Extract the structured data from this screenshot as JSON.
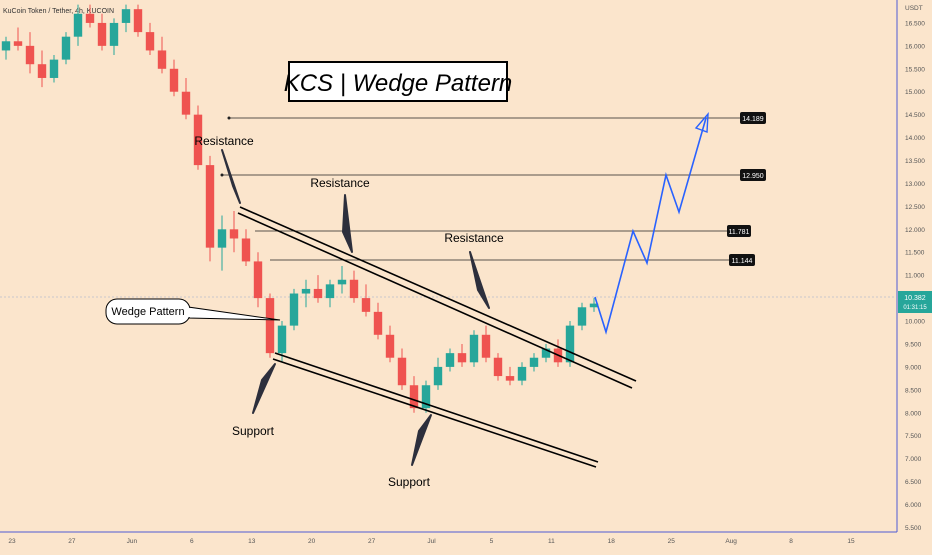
{
  "chart_data": {
    "type": "candlestick",
    "title": "KCS | Wedge Pattern",
    "symbol": "KuCoin Token / Tether, 4h, KUCOIN",
    "currency": "USDT",
    "y_axis_range": [
      5.4,
      17.0
    ],
    "y_ticks": [
      "16.500",
      "16.000",
      "15.500",
      "15.000",
      "14.500",
      "14.000",
      "13.500",
      "13.000",
      "12.500",
      "12.000",
      "11.500",
      "11.000",
      "10.500",
      "10.000",
      "9.500",
      "9.000",
      "8.500",
      "8.000",
      "7.500",
      "7.000",
      "6.500",
      "6.000",
      "5.500"
    ],
    "x_ticks": [
      "23",
      "27",
      "Jun",
      "6",
      "13",
      "20",
      "27",
      "Jul",
      "5",
      "11",
      "18",
      "25",
      "Aug",
      "8",
      "15"
    ],
    "current_price": "10.382",
    "countdown": "01:31:15",
    "price_levels": [
      "14.189",
      "12.950",
      "11.781",
      "11.144"
    ],
    "annotations": {
      "resistance": "Resistance",
      "support": "Support",
      "wedge_pattern": "Wedge Pattern"
    },
    "colors": {
      "background": "#fbe5cc",
      "up_candle": "#26a69a",
      "down_candle": "#ef5350",
      "projection": "#2962ff",
      "current_price_tag": "#26a69a"
    },
    "projection_path": [
      [
        0,
        10.38
      ],
      [
        1,
        9.6
      ],
      [
        2,
        11.75
      ],
      [
        3,
        11.08
      ],
      [
        4,
        12.95
      ],
      [
        5,
        12.15
      ],
      [
        6,
        14.05
      ]
    ],
    "candles": [
      [
        15.9,
        16.2,
        15.7,
        16.1
      ],
      [
        16.1,
        16.4,
        15.9,
        16.0
      ],
      [
        16.0,
        16.3,
        15.4,
        15.6
      ],
      [
        15.6,
        15.9,
        15.1,
        15.3
      ],
      [
        15.3,
        15.8,
        15.2,
        15.7
      ],
      [
        15.7,
        16.3,
        15.6,
        16.2
      ],
      [
        16.2,
        16.9,
        16.0,
        16.7
      ],
      [
        16.7,
        16.9,
        16.4,
        16.5
      ],
      [
        16.5,
        16.7,
        15.9,
        16.0
      ],
      [
        16.0,
        16.6,
        15.8,
        16.5
      ],
      [
        16.5,
        16.9,
        16.3,
        16.8
      ],
      [
        16.8,
        16.9,
        16.2,
        16.3
      ],
      [
        16.3,
        16.5,
        15.8,
        15.9
      ],
      [
        15.9,
        16.2,
        15.4,
        15.5
      ],
      [
        15.5,
        15.7,
        14.9,
        15.0
      ],
      [
        15.0,
        15.3,
        14.4,
        14.5
      ],
      [
        14.5,
        14.7,
        13.3,
        13.4
      ],
      [
        13.4,
        13.6,
        11.3,
        11.6
      ],
      [
        11.6,
        12.3,
        11.1,
        12.0
      ],
      [
        12.0,
        12.4,
        11.5,
        11.8
      ],
      [
        11.8,
        12.0,
        11.2,
        11.3
      ],
      [
        11.3,
        11.5,
        10.3,
        10.5
      ],
      [
        10.5,
        10.6,
        9.2,
        9.3
      ],
      [
        9.3,
        10.0,
        9.1,
        9.9
      ],
      [
        9.9,
        10.7,
        9.8,
        10.6
      ],
      [
        10.6,
        10.9,
        10.3,
        10.7
      ],
      [
        10.7,
        11.0,
        10.4,
        10.5
      ],
      [
        10.5,
        10.9,
        10.3,
        10.8
      ],
      [
        10.8,
        11.2,
        10.6,
        10.9
      ],
      [
        10.9,
        11.1,
        10.4,
        10.5
      ],
      [
        10.5,
        10.8,
        10.1,
        10.2
      ],
      [
        10.2,
        10.4,
        9.6,
        9.7
      ],
      [
        9.7,
        9.9,
        9.1,
        9.2
      ],
      [
        9.2,
        9.4,
        8.5,
        8.6
      ],
      [
        8.6,
        8.8,
        8.0,
        8.1
      ],
      [
        8.1,
        8.7,
        8.0,
        8.6
      ],
      [
        8.6,
        9.2,
        8.5,
        9.0
      ],
      [
        9.0,
        9.4,
        8.9,
        9.3
      ],
      [
        9.3,
        9.5,
        9.0,
        9.1
      ],
      [
        9.1,
        9.8,
        9.0,
        9.7
      ],
      [
        9.7,
        9.9,
        9.1,
        9.2
      ],
      [
        9.2,
        9.3,
        8.7,
        8.8
      ],
      [
        8.8,
        9.0,
        8.6,
        8.7
      ],
      [
        8.7,
        9.1,
        8.6,
        9.0
      ],
      [
        9.0,
        9.3,
        8.9,
        9.2
      ],
      [
        9.2,
        9.5,
        9.1,
        9.4
      ],
      [
        9.4,
        9.6,
        9.0,
        9.1
      ],
      [
        9.1,
        10.0,
        9.0,
        9.9
      ],
      [
        9.9,
        10.4,
        9.8,
        10.3
      ],
      [
        10.3,
        10.5,
        10.2,
        10.38
      ]
    ]
  }
}
